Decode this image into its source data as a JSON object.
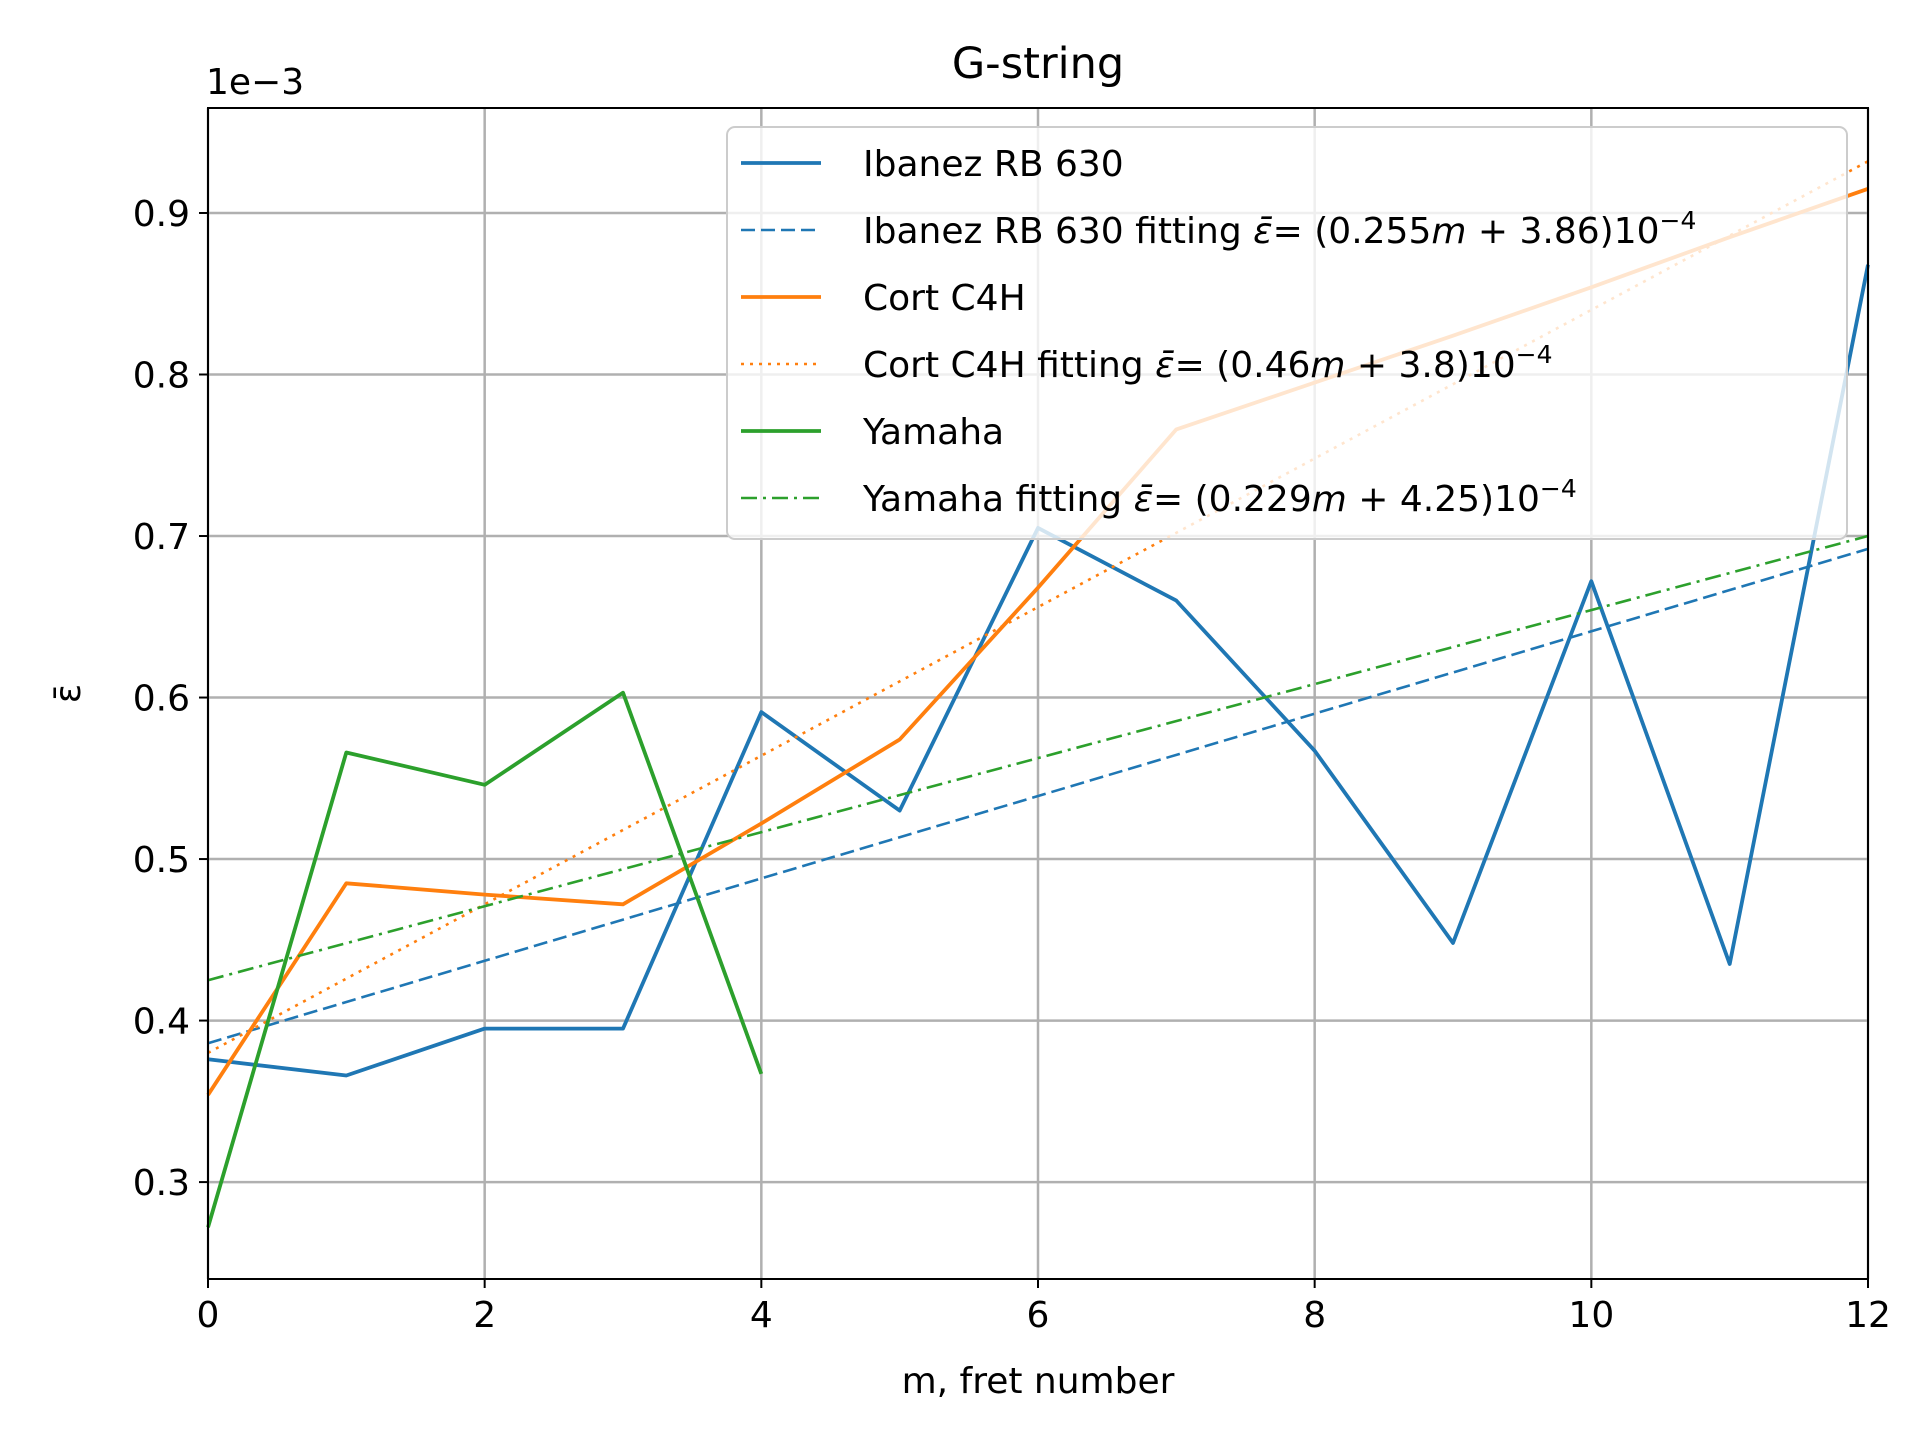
{
  "chart_data": {
    "type": "line",
    "title": "G-string",
    "xlabel": "m, fret number",
    "ylabel": "ε̄",
    "offset_text": "1e−3",
    "xlim": [
      0,
      12
    ],
    "ylim": [
      0.24,
      0.965
    ],
    "y_scale_factor": 0.001,
    "x_ticks": [
      0,
      2,
      4,
      6,
      8,
      10,
      12
    ],
    "x_tick_labels": [
      "0",
      "2",
      "4",
      "6",
      "8",
      "10",
      "12"
    ],
    "y_ticks": [
      0.3,
      0.4,
      0.5,
      0.6,
      0.7,
      0.8,
      0.9
    ],
    "y_tick_labels": [
      "0.3",
      "0.4",
      "0.5",
      "0.6",
      "0.7",
      "0.8",
      "0.9"
    ],
    "grid": true,
    "legend_position": "top-right",
    "series": [
      {
        "name": "Ibanez RB 630",
        "style": "solid",
        "color": "#1f77b4",
        "x": [
          0,
          1,
          2,
          3,
          4,
          5,
          6,
          7,
          8,
          9,
          10,
          11,
          12
        ],
        "y": [
          0.376,
          0.366,
          0.395,
          0.395,
          0.591,
          0.53,
          0.705,
          0.66,
          0.567,
          0.448,
          0.672,
          0.435,
          0.868
        ]
      },
      {
        "name": "Ibanez RB 630 fitting ε̄ = (0.255m + 3.86)10⁻⁴",
        "legend_parts": {
          "prefix": "Ibanez RB 630 fitting ",
          "eq": "= (0.255",
          "m": "m",
          "mid": " + 3.86)10",
          "exp": "−4"
        },
        "style": "dashed",
        "color": "#1f77b4",
        "x": [
          0,
          12
        ],
        "y": [
          0.386,
          0.692
        ]
      },
      {
        "name": "Cort C4H",
        "style": "solid",
        "color": "#ff7f0e",
        "x": [
          0,
          1,
          2,
          3,
          4,
          5,
          6,
          7,
          8,
          9,
          10,
          11,
          12
        ],
        "y": [
          0.354,
          0.485,
          0.478,
          0.472,
          0.522,
          0.574,
          0.668,
          0.766,
          0.795,
          0.824,
          0.854,
          0.885,
          0.915
        ]
      },
      {
        "name": "Cort C4H fitting ε̄ = (0.46m + 3.8)10⁻⁴",
        "legend_parts": {
          "prefix": "Cort C4H fitting ",
          "eq": "= (0.46",
          "m": "m",
          "mid": " + 3.8)10",
          "exp": "−4"
        },
        "style": "dotted",
        "color": "#ff7f0e",
        "x": [
          0,
          12
        ],
        "y": [
          0.38,
          0.932
        ]
      },
      {
        "name": "Yamaha",
        "style": "solid",
        "color": "#2ca02c",
        "x": [
          0,
          1,
          2,
          3,
          4
        ],
        "y": [
          0.272,
          0.566,
          0.546,
          0.603,
          0.367
        ]
      },
      {
        "name": "Yamaha fitting ε̄ = (0.229m + 4.25)10⁻⁴",
        "legend_parts": {
          "prefix": "Yamaha fitting ",
          "eq": "= (0.229",
          "m": "m",
          "mid": " + 4.25)10",
          "exp": "−4"
        },
        "style": "dashdot",
        "color": "#2ca02c",
        "x": [
          0,
          12
        ],
        "y": [
          0.425,
          0.7
        ]
      }
    ]
  }
}
